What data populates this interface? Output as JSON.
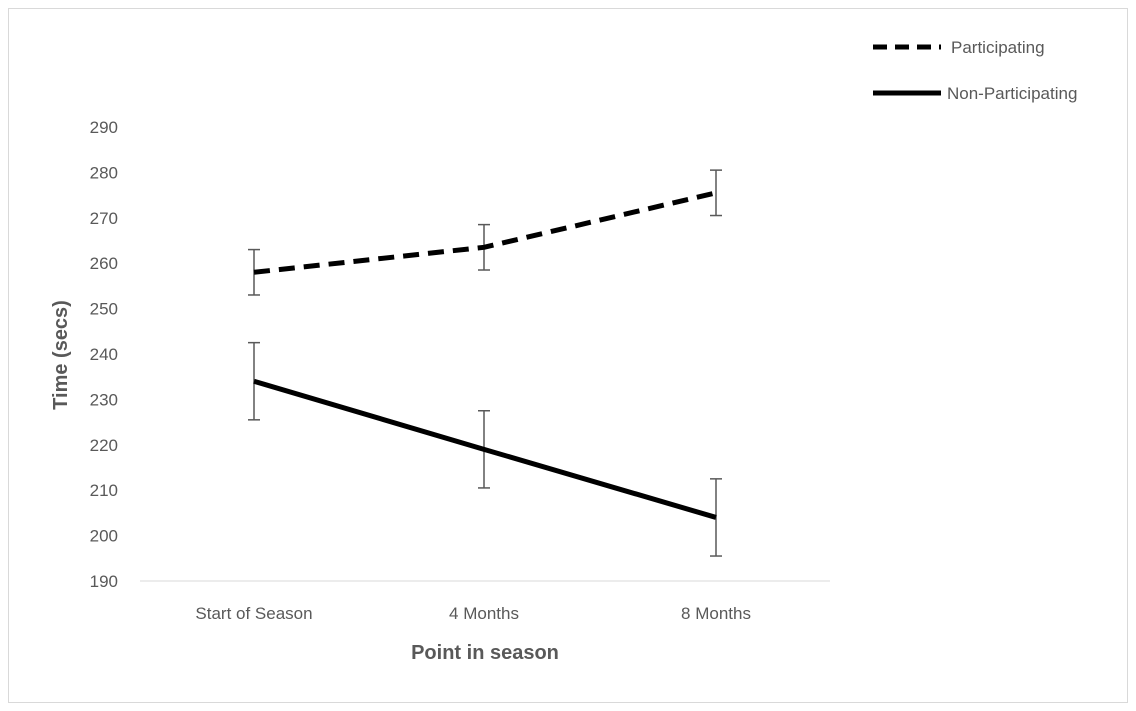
{
  "chart_data": {
    "type": "line",
    "categories": [
      "Start of Season",
      "4 Months",
      "8 Months"
    ],
    "series": [
      {
        "name": "Participating",
        "values": [
          258,
          263.5,
          275.5
        ],
        "error_low": [
          253,
          258.5,
          270.5
        ],
        "error_high": [
          263,
          268.5,
          280.5
        ],
        "line_style": "dashed",
        "color": "#000000"
      },
      {
        "name": "Non-Participating",
        "values": [
          234,
          219,
          204
        ],
        "error_low": [
          225.5,
          210.5,
          195.5
        ],
        "error_high": [
          242.5,
          227.5,
          212.5
        ],
        "line_style": "solid",
        "color": "#000000"
      }
    ],
    "xlabel": "Point in season",
    "ylabel": "Time (secs)",
    "ylim": [
      190,
      290
    ],
    "yticks": [
      190,
      200,
      210,
      220,
      230,
      240,
      250,
      260,
      270,
      280,
      290
    ],
    "grid": false,
    "legend_position": "top-right"
  }
}
